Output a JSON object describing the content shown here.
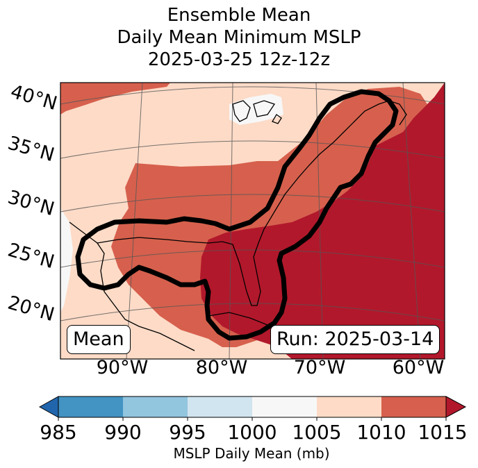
{
  "title": {
    "line1": "Ensemble Mean",
    "line2": "Daily Mean Minimum MSLP",
    "line3": "2025-03-25 12z-12z"
  },
  "map": {
    "lat_labels": [
      "40°N",
      "35°N",
      "30°N",
      "25°N",
      "20°N"
    ],
    "lon_labels": [
      "90°W",
      "80°W",
      "70°W",
      "60°W"
    ],
    "mean_box": "Mean",
    "run_box": "Run: 2025-03-14",
    "colors": {
      "band_1005_1010": "#fddbc7",
      "band_1010_1015": "#d6604d",
      "band_above_1015": "#b2182b",
      "band_1000_1005": "#f7f7f7",
      "contour": "#000000"
    }
  },
  "colorbar": {
    "label": "MSLP Daily Mean (mb)",
    "ticks": [
      "985",
      "990",
      "995",
      "1000",
      "1005",
      "1010",
      "1015"
    ],
    "colors": [
      "#2166ac",
      "#4393c3",
      "#92c5de",
      "#d1e5f0",
      "#f7f7f7",
      "#fddbc7",
      "#d6604d",
      "#b2182b"
    ]
  }
}
